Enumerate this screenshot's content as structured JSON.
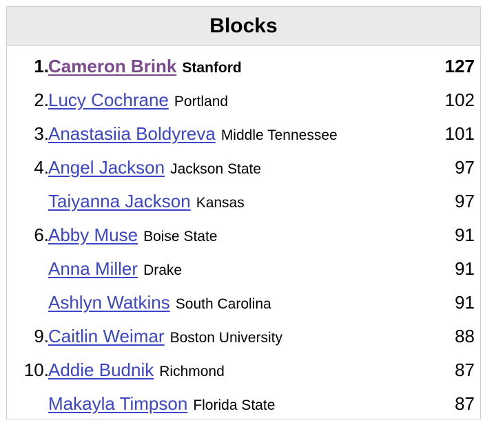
{
  "panel": {
    "title": "Blocks"
  },
  "colors": {
    "link": "#3a45c8",
    "visited_link": "#7b4a8c",
    "header_bg": "#eaeaea",
    "border": "#cfcfcf"
  },
  "rows": [
    {
      "rank": "1.",
      "name": "Cameron Brink",
      "school": "Stanford",
      "value": "127",
      "bold": true
    },
    {
      "rank": "2.",
      "name": "Lucy Cochrane",
      "school": "Portland",
      "value": "102"
    },
    {
      "rank": "3.",
      "name": "Anastasiia Boldyreva",
      "school": "Middle Tennessee",
      "value": "101"
    },
    {
      "rank": "4.",
      "name": "Angel Jackson",
      "school": "Jackson State",
      "value": "97"
    },
    {
      "rank": "",
      "name": "Taiyanna Jackson",
      "school": "Kansas",
      "value": "97"
    },
    {
      "rank": "6.",
      "name": "Abby Muse",
      "school": "Boise State",
      "value": "91"
    },
    {
      "rank": "",
      "name": "Anna Miller",
      "school": "Drake",
      "value": "91"
    },
    {
      "rank": "",
      "name": "Ashlyn Watkins",
      "school": "South Carolina",
      "value": "91"
    },
    {
      "rank": "9.",
      "name": "Caitlin Weimar",
      "school": "Boston University",
      "value": "88"
    },
    {
      "rank": "10.",
      "name": "Addie Budnik",
      "school": "Richmond",
      "value": "87"
    },
    {
      "rank": "",
      "name": "Makayla Timpson",
      "school": "Florida State",
      "value": "87"
    }
  ]
}
